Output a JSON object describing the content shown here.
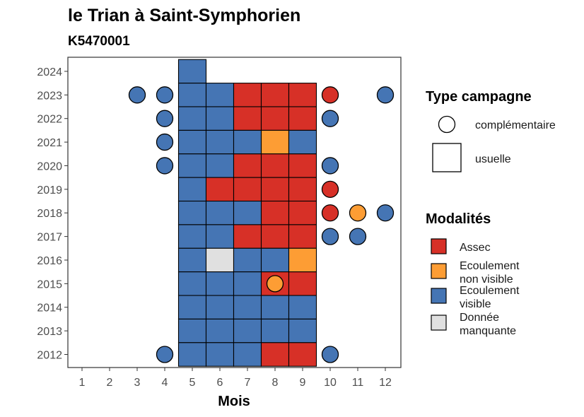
{
  "title": "le Trian à Saint-Symphorien",
  "subtitle": "K5470001",
  "chart_data": {
    "type": "heatmap",
    "xlabel": "Mois",
    "ylabel": "",
    "x_ticks": [
      "1",
      "2",
      "3",
      "4",
      "5",
      "6",
      "7",
      "8",
      "9",
      "10",
      "11",
      "12"
    ],
    "y_ticks": [
      "2012",
      "2013",
      "2014",
      "2015",
      "2016",
      "2017",
      "2018",
      "2019",
      "2020",
      "2021",
      "2022",
      "2023",
      "2024"
    ],
    "xlim": [
      0.5,
      12.5
    ],
    "ylim": [
      2011.45,
      2024.6
    ],
    "grid": false,
    "legend_position": "right",
    "colors": {
      "Assec": "#d73027",
      "Ecoulement non visible": "#fd9d34",
      "Ecoulement visible": "#4575b4",
      "Donnée manquante": "#e0e0e0"
    },
    "usuelle": [
      {
        "year": 2024,
        "month": 5,
        "modalite": "Ecoulement visible"
      },
      {
        "year": 2023,
        "month": 5,
        "modalite": "Ecoulement visible"
      },
      {
        "year": 2023,
        "month": 6,
        "modalite": "Ecoulement visible"
      },
      {
        "year": 2023,
        "month": 7,
        "modalite": "Assec"
      },
      {
        "year": 2023,
        "month": 8,
        "modalite": "Assec"
      },
      {
        "year": 2023,
        "month": 9,
        "modalite": "Assec"
      },
      {
        "year": 2022,
        "month": 5,
        "modalite": "Ecoulement visible"
      },
      {
        "year": 2022,
        "month": 6,
        "modalite": "Ecoulement visible"
      },
      {
        "year": 2022,
        "month": 7,
        "modalite": "Assec"
      },
      {
        "year": 2022,
        "month": 8,
        "modalite": "Assec"
      },
      {
        "year": 2022,
        "month": 9,
        "modalite": "Assec"
      },
      {
        "year": 2021,
        "month": 5,
        "modalite": "Ecoulement visible"
      },
      {
        "year": 2021,
        "month": 6,
        "modalite": "Ecoulement visible"
      },
      {
        "year": 2021,
        "month": 7,
        "modalite": "Ecoulement visible"
      },
      {
        "year": 2021,
        "month": 8,
        "modalite": "Ecoulement non visible"
      },
      {
        "year": 2021,
        "month": 9,
        "modalite": "Ecoulement visible"
      },
      {
        "year": 2020,
        "month": 5,
        "modalite": "Ecoulement visible"
      },
      {
        "year": 2020,
        "month": 6,
        "modalite": "Ecoulement visible"
      },
      {
        "year": 2020,
        "month": 7,
        "modalite": "Assec"
      },
      {
        "year": 2020,
        "month": 8,
        "modalite": "Assec"
      },
      {
        "year": 2020,
        "month": 9,
        "modalite": "Assec"
      },
      {
        "year": 2019,
        "month": 5,
        "modalite": "Ecoulement visible"
      },
      {
        "year": 2019,
        "month": 6,
        "modalite": "Assec"
      },
      {
        "year": 2019,
        "month": 7,
        "modalite": "Assec"
      },
      {
        "year": 2019,
        "month": 8,
        "modalite": "Assec"
      },
      {
        "year": 2019,
        "month": 9,
        "modalite": "Assec"
      },
      {
        "year": 2018,
        "month": 5,
        "modalite": "Ecoulement visible"
      },
      {
        "year": 2018,
        "month": 6,
        "modalite": "Ecoulement visible"
      },
      {
        "year": 2018,
        "month": 7,
        "modalite": "Ecoulement visible"
      },
      {
        "year": 2018,
        "month": 8,
        "modalite": "Assec"
      },
      {
        "year": 2018,
        "month": 9,
        "modalite": "Assec"
      },
      {
        "year": 2017,
        "month": 5,
        "modalite": "Ecoulement visible"
      },
      {
        "year": 2017,
        "month": 6,
        "modalite": "Ecoulement visible"
      },
      {
        "year": 2017,
        "month": 7,
        "modalite": "Assec"
      },
      {
        "year": 2017,
        "month": 8,
        "modalite": "Assec"
      },
      {
        "year": 2017,
        "month": 9,
        "modalite": "Assec"
      },
      {
        "year": 2016,
        "month": 5,
        "modalite": "Ecoulement visible"
      },
      {
        "year": 2016,
        "month": 6,
        "modalite": "Donnée manquante"
      },
      {
        "year": 2016,
        "month": 7,
        "modalite": "Ecoulement visible"
      },
      {
        "year": 2016,
        "month": 8,
        "modalite": "Ecoulement visible"
      },
      {
        "year": 2016,
        "month": 9,
        "modalite": "Ecoulement non visible"
      },
      {
        "year": 2015,
        "month": 5,
        "modalite": "Ecoulement visible"
      },
      {
        "year": 2015,
        "month": 6,
        "modalite": "Ecoulement visible"
      },
      {
        "year": 2015,
        "month": 7,
        "modalite": "Ecoulement visible"
      },
      {
        "year": 2015,
        "month": 8,
        "modalite": "Assec"
      },
      {
        "year": 2015,
        "month": 9,
        "modalite": "Assec"
      },
      {
        "year": 2014,
        "month": 5,
        "modalite": "Ecoulement visible"
      },
      {
        "year": 2014,
        "month": 6,
        "modalite": "Ecoulement visible"
      },
      {
        "year": 2014,
        "month": 7,
        "modalite": "Ecoulement visible"
      },
      {
        "year": 2014,
        "month": 8,
        "modalite": "Ecoulement visible"
      },
      {
        "year": 2014,
        "month": 9,
        "modalite": "Ecoulement visible"
      },
      {
        "year": 2013,
        "month": 5,
        "modalite": "Ecoulement visible"
      },
      {
        "year": 2013,
        "month": 6,
        "modalite": "Ecoulement visible"
      },
      {
        "year": 2013,
        "month": 7,
        "modalite": "Ecoulement visible"
      },
      {
        "year": 2013,
        "month": 8,
        "modalite": "Ecoulement visible"
      },
      {
        "year": 2013,
        "month": 9,
        "modalite": "Ecoulement visible"
      },
      {
        "year": 2012,
        "month": 5,
        "modalite": "Ecoulement visible"
      },
      {
        "year": 2012,
        "month": 6,
        "modalite": "Ecoulement visible"
      },
      {
        "year": 2012,
        "month": 7,
        "modalite": "Ecoulement visible"
      },
      {
        "year": 2012,
        "month": 8,
        "modalite": "Assec"
      },
      {
        "year": 2012,
        "month": 9,
        "modalite": "Assec"
      }
    ],
    "complementaire": [
      {
        "year": 2023,
        "month": 3,
        "modalite": "Ecoulement visible"
      },
      {
        "year": 2023,
        "month": 4,
        "modalite": "Ecoulement visible"
      },
      {
        "year": 2023,
        "month": 10,
        "modalite": "Assec"
      },
      {
        "year": 2023,
        "month": 12,
        "modalite": "Ecoulement visible"
      },
      {
        "year": 2022,
        "month": 4,
        "modalite": "Ecoulement visible"
      },
      {
        "year": 2022,
        "month": 10,
        "modalite": "Ecoulement visible"
      },
      {
        "year": 2021,
        "month": 4,
        "modalite": "Ecoulement visible"
      },
      {
        "year": 2020,
        "month": 4,
        "modalite": "Ecoulement visible"
      },
      {
        "year": 2020,
        "month": 10,
        "modalite": "Ecoulement visible"
      },
      {
        "year": 2019,
        "month": 10,
        "modalite": "Assec"
      },
      {
        "year": 2018,
        "month": 10,
        "modalite": "Assec"
      },
      {
        "year": 2018,
        "month": 11,
        "modalite": "Ecoulement non visible"
      },
      {
        "year": 2018,
        "month": 12,
        "modalite": "Ecoulement visible"
      },
      {
        "year": 2017,
        "month": 10,
        "modalite": "Ecoulement visible"
      },
      {
        "year": 2017,
        "month": 11,
        "modalite": "Ecoulement visible"
      },
      {
        "year": 2015,
        "month": 8,
        "modalite": "Ecoulement non visible"
      },
      {
        "year": 2012,
        "month": 4,
        "modalite": "Ecoulement visible"
      },
      {
        "year": 2012,
        "month": 10,
        "modalite": "Ecoulement visible"
      }
    ],
    "legend": {
      "shape_title": "Type campagne",
      "shape_items": [
        "complémentaire",
        "usuelle"
      ],
      "fill_title": "Modalités",
      "fill_items": [
        {
          "key": "Assec",
          "lines": [
            "Assec"
          ]
        },
        {
          "key": "Ecoulement non visible",
          "lines": [
            "Ecoulement",
            "non visible"
          ]
        },
        {
          "key": "Ecoulement visible",
          "lines": [
            "Ecoulement",
            "visible"
          ]
        },
        {
          "key": "Donnée manquante",
          "lines": [
            "Donnée",
            "manquante"
          ]
        }
      ]
    }
  }
}
